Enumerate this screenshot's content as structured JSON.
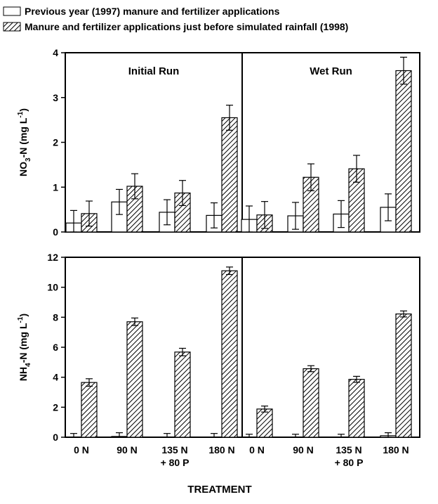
{
  "legend": {
    "items": [
      {
        "label": "Previous year (1997) manure and fertilizer applications",
        "fill": "open"
      },
      {
        "label": "Manure and fertilizer applications just before simulated rainfall (1998)",
        "fill": "hatched"
      }
    ]
  },
  "xlabel": "TREATMENT",
  "colors": {
    "axis": "#000000",
    "bar_fill": "#ffffff",
    "hatch": "#000000"
  },
  "chart_data": [
    {
      "type": "bar",
      "panel": "top",
      "ylabel": {
        "base": "NO",
        "sub": "3",
        "mid": "-N (mg L",
        "sup": "-1",
        "end": ")"
      },
      "ylim": [
        0,
        4
      ],
      "yticks": [
        0,
        1,
        2,
        3,
        4
      ],
      "ytick_labels": [
        "0",
        "1",
        "2",
        "3",
        "4"
      ],
      "grid": false,
      "facets": [
        {
          "title": "Initial Run",
          "categories": [
            "0 N",
            "90 N",
            "135 N + 80 P",
            "180 N"
          ],
          "series": [
            {
              "name": "Previous year (1997) manure and fertilizer applications",
              "fill": "open",
              "values": [
                0.2,
                0.67,
                0.44,
                0.37
              ],
              "error": [
                0.28,
                0.28,
                0.28,
                0.28
              ]
            },
            {
              "name": "Manure and fertilizer applications just before simulated rainfall (1998)",
              "fill": "hatched",
              "values": [
                0.41,
                1.02,
                0.87,
                2.55
              ],
              "error": [
                0.28,
                0.28,
                0.28,
                0.28
              ]
            }
          ]
        },
        {
          "title": "Wet Run",
          "categories": [
            "0 N",
            "90 N",
            "135 N + 80 P",
            "180 N"
          ],
          "series": [
            {
              "name": "Previous year (1997) manure and fertilizer applications",
              "fill": "open",
              "values": [
                0.28,
                0.36,
                0.4,
                0.55
              ],
              "error": [
                0.3,
                0.3,
                0.3,
                0.3
              ]
            },
            {
              "name": "Manure and fertilizer applications just before simulated rainfall (1998)",
              "fill": "hatched",
              "values": [
                0.38,
                1.22,
                1.41,
                3.6
              ],
              "error": [
                0.3,
                0.3,
                0.3,
                0.3
              ]
            }
          ]
        }
      ]
    },
    {
      "type": "bar",
      "panel": "bottom",
      "ylabel": {
        "base": "NH",
        "sub": "4",
        "mid": "-N (mg L",
        "sup": "-1",
        "end": ")"
      },
      "ylim": [
        0,
        12
      ],
      "yticks": [
        0,
        2,
        4,
        6,
        8,
        10,
        12
      ],
      "ytick_labels": [
        "0",
        "2",
        "4",
        "6",
        "8",
        "10",
        "12"
      ],
      "grid": false,
      "facets": [
        {
          "title": "",
          "categories": [
            "0 N",
            "90 N",
            "135 N + 80 P",
            "180 N"
          ],
          "category_lines": [
            [
              "0 N"
            ],
            [
              "90 N"
            ],
            [
              "135 N",
              "+ 80 P"
            ],
            [
              "180 N"
            ]
          ],
          "series": [
            {
              "name": "Previous year (1997) manure and fertilizer applications",
              "fill": "open",
              "values": [
                0.0,
                0.05,
                0.0,
                0.0
              ],
              "error": [
                0.25,
                0.25,
                0.25,
                0.25
              ]
            },
            {
              "name": "Manure and fertilizer applications just before simulated rainfall (1998)",
              "fill": "hatched",
              "values": [
                3.65,
                7.7,
                5.68,
                11.1
              ],
              "error": [
                0.25,
                0.25,
                0.25,
                0.25
              ]
            }
          ]
        },
        {
          "title": "",
          "categories": [
            "0 N",
            "90 N",
            "135 N + 80 P",
            "180 N"
          ],
          "category_lines": [
            [
              "0 N"
            ],
            [
              "90 N"
            ],
            [
              "135 N",
              "+ 80 P"
            ],
            [
              "180 N"
            ]
          ],
          "series": [
            {
              "name": "Previous year (1997) manure and fertilizer applications",
              "fill": "open",
              "values": [
                0.0,
                0.0,
                0.0,
                0.1
              ],
              "error": [
                0.2,
                0.2,
                0.2,
                0.2
              ]
            },
            {
              "name": "Manure and fertilizer applications just before simulated rainfall (1998)",
              "fill": "hatched",
              "values": [
                1.88,
                4.57,
                3.86,
                8.22
              ],
              "error": [
                0.2,
                0.2,
                0.2,
                0.2
              ]
            }
          ]
        }
      ]
    }
  ]
}
